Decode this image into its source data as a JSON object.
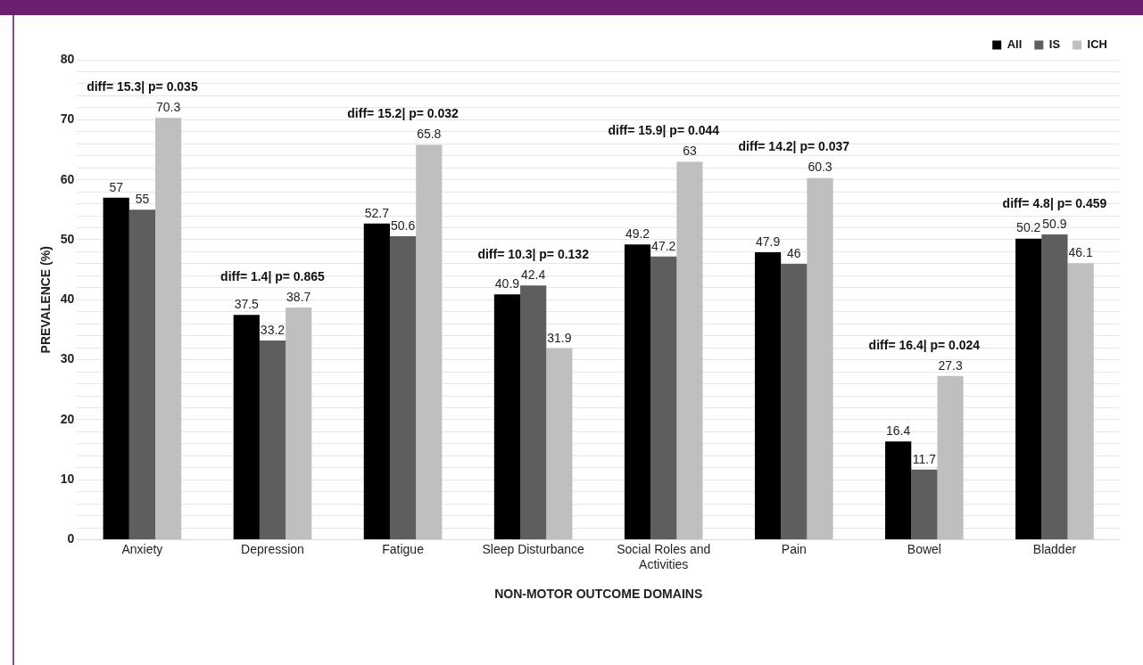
{
  "chart_data": {
    "type": "bar",
    "xlabel": "NON-MOTOR OUTCOME DOMAINS",
    "ylabel": "PREVALENCE (%)",
    "categories": [
      "Anxiety",
      "Depression",
      "Fatigue",
      "Sleep Disturbance",
      "Social Roles and Activities",
      "Pain",
      "Bowel",
      "Bladder"
    ],
    "series": [
      {
        "name": "All",
        "color": "#000000",
        "values": [
          57,
          37.5,
          52.7,
          40.9,
          49.2,
          47.9,
          16.4,
          50.2
        ]
      },
      {
        "name": "IS",
        "color": "#5e5e5e",
        "values": [
          55,
          33.2,
          50.6,
          42.4,
          47.2,
          46,
          11.7,
          50.9
        ]
      },
      {
        "name": "ICH",
        "color": "#bfbfbf",
        "values": [
          70.3,
          38.7,
          65.8,
          31.9,
          63,
          60.3,
          27.3,
          46.1
        ]
      }
    ],
    "ylim": [
      0,
      80
    ],
    "yticks": [
      0,
      {
        "value": 2,
        "label": null
      },
      {
        "value": 4,
        "label": null
      },
      {
        "value": 6,
        "label": null
      },
      {
        "value": 8,
        "label": null
      },
      10,
      {
        "value": 12,
        "label": null
      },
      {
        "value": 14,
        "label": null
      },
      {
        "value": 16,
        "label": null
      },
      {
        "value": 18,
        "label": null
      },
      20,
      {
        "value": 22,
        "label": null
      },
      {
        "value": 24,
        "label": null
      },
      {
        "value": 26,
        "label": null
      },
      {
        "value": 28,
        "label": null
      },
      30,
      {
        "value": 32,
        "label": null
      },
      {
        "value": 34,
        "label": null
      },
      {
        "value": 36,
        "label": null
      },
      {
        "value": 38,
        "label": null
      },
      40,
      {
        "value": 42,
        "label": null
      },
      {
        "value": 44,
        "label": null
      },
      {
        "value": 46,
        "label": null
      },
      {
        "value": 48,
        "label": null
      },
      50,
      {
        "value": 52,
        "label": null
      },
      {
        "value": 54,
        "label": null
      },
      {
        "value": 56,
        "label": null
      },
      {
        "value": 58,
        "label": null
      },
      60,
      {
        "value": 62,
        "label": null
      },
      {
        "value": 64,
        "label": null
      },
      {
        "value": 66,
        "label": null
      },
      {
        "value": 68,
        "label": null
      },
      70,
      {
        "value": 72,
        "label": null
      },
      {
        "value": 74,
        "label": null
      },
      {
        "value": 76,
        "label": null
      },
      {
        "value": 78,
        "label": null
      },
      80
    ],
    "grid": "y",
    "legend": "top right",
    "data_labels": true,
    "annotations": [
      "diff= 15.3| p= 0.035",
      "diff= 1.4| p= 0.865",
      "diff= 15.2| p= 0.032",
      "diff= 10.3| p= 0.132",
      "diff= 15.9| p= 0.044",
      "diff= 14.2| p= 0.037",
      "diff= 16.4| p= 0.024",
      "diff= 4.8| p= 0.459"
    ]
  }
}
